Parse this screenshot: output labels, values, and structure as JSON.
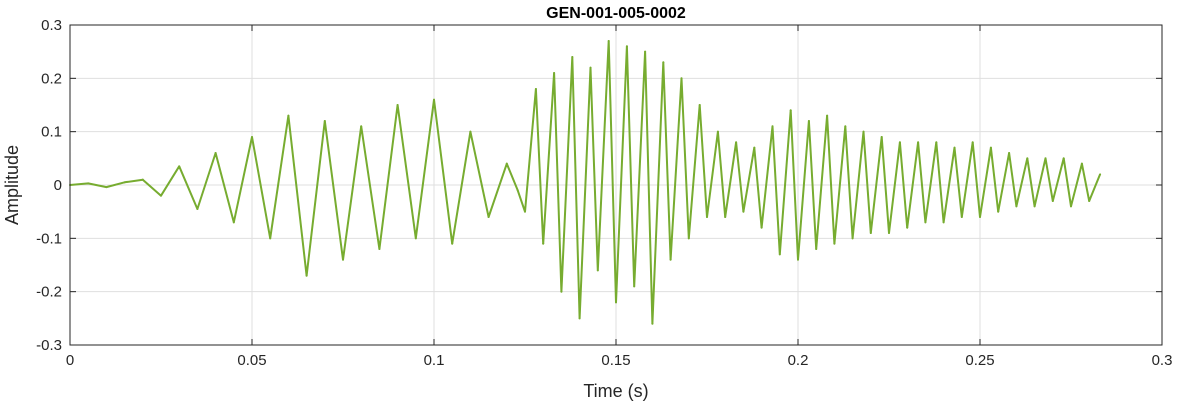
{
  "chart_data": {
    "type": "line",
    "title": "GEN-001-005-0002",
    "xlabel": "Time (s)",
    "ylabel": "Amplitude",
    "xlim": [
      0,
      0.3
    ],
    "ylim": [
      -0.3,
      0.3
    ],
    "xticks": [
      0,
      0.05,
      0.1,
      0.15,
      0.2,
      0.25,
      0.3
    ],
    "xtick_labels": [
      "0",
      "0.05",
      "0.1",
      "0.15",
      "0.2",
      "0.25",
      "0.3"
    ],
    "yticks": [
      -0.3,
      -0.2,
      -0.1,
      0,
      0.1,
      0.2,
      0.3
    ],
    "ytick_labels": [
      "-0.3",
      "-0.2",
      "-0.1",
      "0",
      "0.1",
      "0.2",
      "0.3"
    ],
    "grid": true,
    "line_color": "#77ac30",
    "series": [
      {
        "x": [
          0,
          0.005,
          0.01,
          0.015,
          0.02,
          0.025,
          0.03,
          0.035,
          0.04,
          0.045,
          0.05,
          0.055,
          0.06,
          0.065,
          0.07,
          0.075,
          0.08,
          0.085,
          0.09,
          0.095,
          0.1,
          0.105,
          0.11,
          0.115,
          0.12,
          0.123,
          0.125,
          0.128,
          0.13,
          0.133,
          0.135,
          0.138,
          0.14,
          0.143,
          0.145,
          0.148,
          0.15,
          0.153,
          0.155,
          0.158,
          0.16,
          0.163,
          0.165,
          0.168,
          0.17,
          0.173,
          0.175,
          0.178,
          0.18,
          0.183,
          0.185,
          0.188,
          0.19,
          0.193,
          0.195,
          0.198,
          0.2,
          0.203,
          0.205,
          0.208,
          0.21,
          0.213,
          0.215,
          0.218,
          0.22,
          0.223,
          0.225,
          0.228,
          0.23,
          0.233,
          0.235,
          0.238,
          0.24,
          0.243,
          0.245,
          0.248,
          0.25,
          0.253,
          0.255,
          0.258,
          0.26,
          0.263,
          0.265,
          0.268,
          0.27,
          0.273,
          0.275,
          0.278,
          0.28,
          0.283
        ],
        "y": [
          0,
          0.003,
          -0.004,
          0.005,
          0.01,
          -0.02,
          0.035,
          -0.045,
          0.06,
          -0.07,
          0.09,
          -0.1,
          0.13,
          -0.17,
          0.12,
          -0.14,
          0.11,
          -0.12,
          0.15,
          -0.1,
          0.16,
          -0.11,
          0.1,
          -0.06,
          0.04,
          -0.01,
          -0.05,
          0.18,
          -0.11,
          0.21,
          -0.2,
          0.24,
          -0.25,
          0.22,
          -0.16,
          0.27,
          -0.22,
          0.26,
          -0.19,
          0.25,
          -0.26,
          0.23,
          -0.14,
          0.2,
          -0.1,
          0.15,
          -0.06,
          0.1,
          -0.06,
          0.08,
          -0.05,
          0.07,
          -0.08,
          0.11,
          -0.13,
          0.14,
          -0.14,
          0.12,
          -0.12,
          0.13,
          -0.11,
          0.11,
          -0.1,
          0.1,
          -0.09,
          0.09,
          -0.09,
          0.08,
          -0.08,
          0.08,
          -0.07,
          0.08,
          -0.07,
          0.07,
          -0.06,
          0.08,
          -0.06,
          0.07,
          -0.05,
          0.06,
          -0.04,
          0.05,
          -0.04,
          0.05,
          -0.03,
          0.05,
          -0.04,
          0.04,
          -0.03,
          0.02
        ]
      }
    ]
  }
}
